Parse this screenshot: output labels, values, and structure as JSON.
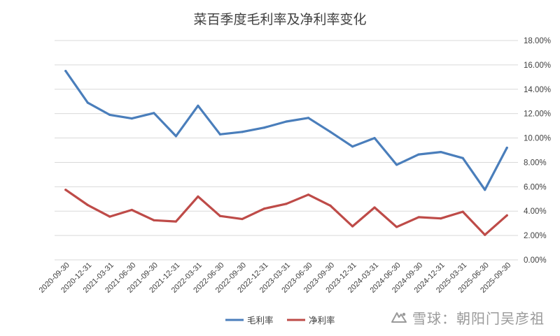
{
  "chart_data": {
    "type": "line",
    "title": "菜百季度毛利率及净利率变化",
    "categories": [
      "2020-09-30",
      "2020-12-31",
      "2021-03-31",
      "2021-06-30",
      "2021-09-30",
      "2021-12-31",
      "2022-03-31",
      "2022-06-30",
      "2022-09-30",
      "2022-12-31",
      "2023-03-31",
      "2023-06-30",
      "2023-09-30",
      "2023-12-31",
      "2024-03-31",
      "2024-06-30",
      "2024-09-30",
      "2024-12-31",
      "2025-03-31",
      "2025-06-30",
      "2025-09-30"
    ],
    "series": [
      {
        "name": "毛利率",
        "color": "#4a7ebb",
        "values": [
          15.5,
          12.9,
          11.9,
          11.6,
          12.05,
          10.15,
          12.65,
          10.3,
          10.5,
          10.85,
          11.35,
          11.65,
          10.5,
          9.3,
          10.0,
          7.8,
          8.65,
          8.85,
          8.35,
          5.75,
          9.2
        ]
      },
      {
        "name": "净利率",
        "color": "#be4b48",
        "values": [
          5.75,
          4.5,
          3.55,
          4.1,
          3.25,
          3.15,
          5.2,
          3.6,
          3.35,
          4.2,
          4.6,
          5.35,
          4.45,
          2.75,
          4.3,
          2.7,
          3.5,
          3.4,
          3.95,
          2.05,
          3.65
        ]
      }
    ],
    "y_axis": {
      "position": "right",
      "min": 0,
      "max": 18,
      "step": 2,
      "tick_labels": [
        "0.00%",
        "2.00%",
        "4.00%",
        "6.00%",
        "8.00%",
        "10.00%",
        "12.00%",
        "14.00%",
        "16.00%",
        "18.00%"
      ]
    },
    "grid": true,
    "legend": "bottom-center"
  },
  "watermark": {
    "text": "雪球：朝阳门吴彦祖"
  }
}
